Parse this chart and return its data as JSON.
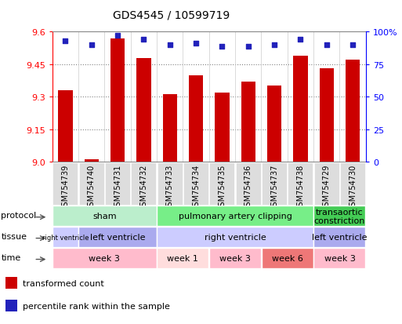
{
  "title": "GDS4545 / 10599719",
  "samples": [
    "GSM754739",
    "GSM754740",
    "GSM754731",
    "GSM754732",
    "GSM754733",
    "GSM754734",
    "GSM754735",
    "GSM754736",
    "GSM754737",
    "GSM754738",
    "GSM754729",
    "GSM754730"
  ],
  "bar_values": [
    9.33,
    9.01,
    9.57,
    9.48,
    9.31,
    9.4,
    9.32,
    9.37,
    9.35,
    9.49,
    9.43,
    9.47
  ],
  "dot_values": [
    93,
    90,
    97,
    94,
    90,
    91,
    89,
    89,
    90,
    94,
    90,
    90
  ],
  "ylim_left": [
    9.0,
    9.6
  ],
  "ylim_right": [
    0,
    100
  ],
  "yticks_left": [
    9.0,
    9.15,
    9.3,
    9.45,
    9.6
  ],
  "yticks_right": [
    0,
    25,
    50,
    75,
    100
  ],
  "bar_color": "#cc0000",
  "dot_color": "#2222bb",
  "protocol_row": {
    "label": "protocol",
    "segments": [
      {
        "text": "sham",
        "start": 0,
        "end": 4,
        "color": "#bbeecc"
      },
      {
        "text": "pulmonary artery clipping",
        "start": 4,
        "end": 10,
        "color": "#77ee88"
      },
      {
        "text": "transaortic\nconstriction",
        "start": 10,
        "end": 12,
        "color": "#44cc55"
      }
    ]
  },
  "tissue_row": {
    "label": "tissue",
    "segments": [
      {
        "text": "right ventricle",
        "start": 0,
        "end": 1,
        "color": "#ccccff",
        "fontsize": 6
      },
      {
        "text": "left ventricle",
        "start": 1,
        "end": 4,
        "color": "#aaaaee"
      },
      {
        "text": "right ventricle",
        "start": 4,
        "end": 10,
        "color": "#ccccff"
      },
      {
        "text": "left ventricle",
        "start": 10,
        "end": 12,
        "color": "#aaaaee"
      }
    ]
  },
  "time_row": {
    "label": "time",
    "segments": [
      {
        "text": "week 3",
        "start": 0,
        "end": 4,
        "color": "#ffbbcc"
      },
      {
        "text": "week 1",
        "start": 4,
        "end": 6,
        "color": "#ffdddd"
      },
      {
        "text": "week 3",
        "start": 6,
        "end": 8,
        "color": "#ffbbcc"
      },
      {
        "text": "week 6",
        "start": 8,
        "end": 10,
        "color": "#ee7777"
      },
      {
        "text": "week 3",
        "start": 10,
        "end": 12,
        "color": "#ffbbcc"
      }
    ]
  },
  "legend_items": [
    {
      "label": "transformed count",
      "color": "#cc0000"
    },
    {
      "label": "percentile rank within the sample",
      "color": "#2222bb"
    }
  ]
}
